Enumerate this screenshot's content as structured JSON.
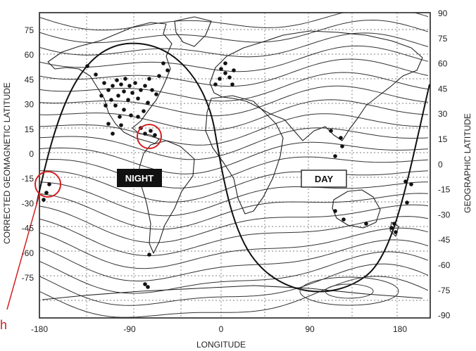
{
  "left_axis": {
    "title": "CORRECTED GEOMAGNETIC LATITUDE",
    "ticks": [
      "75",
      "60",
      "45",
      "30",
      "15",
      "0",
      "-15",
      "-30",
      "-45",
      "-60",
      "-75"
    ]
  },
  "right_axis": {
    "title": "GEOGRAPHIC LATITUDE",
    "ticks": [
      "90",
      "75",
      "60",
      "45",
      "30",
      "15",
      "0",
      "-15",
      "-30",
      "-45",
      "-60",
      "-75",
      "-90"
    ]
  },
  "bottom_axis": {
    "title": "LONGITUDE",
    "ticks": [
      "-180",
      "-90",
      "0",
      "90",
      "180"
    ]
  },
  "labels": {
    "night": "NIGHT",
    "day": "DAY",
    "marker": "h"
  },
  "colors": {
    "ink": "#222222",
    "grid": "#555555",
    "highlight": "#d42020"
  }
}
